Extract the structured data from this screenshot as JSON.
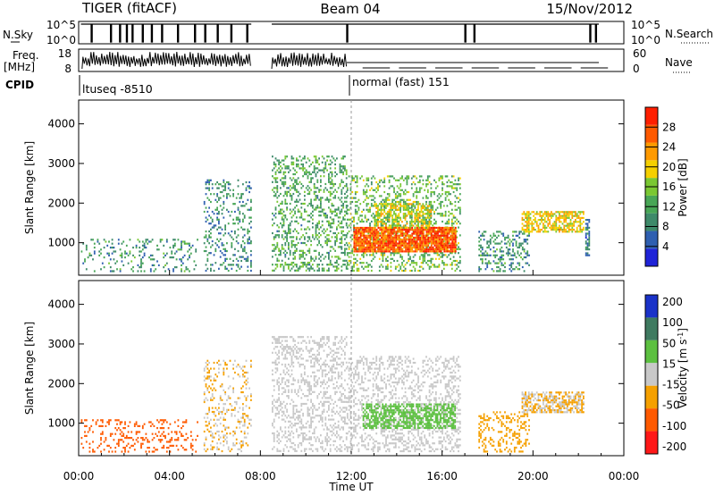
{
  "header": {
    "title": "TIGER (fitACF)",
    "beam": "Beam 04",
    "date": "15/Nov/2012"
  },
  "status_panels": {
    "nsky_label": "N.Sky",
    "nsky_ticks": [
      "10^5",
      "10^0"
    ],
    "nsearch_label": "N.Search",
    "nsearch_ticks": [
      "10^5",
      "10^0"
    ],
    "freq_label_1": "Freq.",
    "freq_label_2": "[MHz]",
    "freq_ticks": [
      "18",
      "8"
    ],
    "nave_label": "Nave",
    "nave_ticks": [
      "60",
      "0"
    ],
    "cpid_label": "CPID",
    "cpid_segments": [
      "ltuseq -8510",
      "normal (fast) 151"
    ]
  },
  "colors": {
    "power": [
      "#1f23d8",
      "#2f5fb0",
      "#3e8a6a",
      "#48a656",
      "#7ac832",
      "#f5d000",
      "#ff9a00",
      "#ff5a00",
      "#ff1f00"
    ],
    "velocity": [
      "#1a32c8",
      "#3f7a60",
      "#5cc040",
      "#c8c8c8",
      "#f5a000",
      "#ff5a00",
      "#ff1818"
    ]
  },
  "chart_data": [
    {
      "type": "heatmap",
      "title": "",
      "xlabel": "",
      "ylabel": "Slant Range [km]",
      "x_domain_hours": [
        0,
        24
      ],
      "x_ticks": [
        "00:00",
        "04:00",
        "08:00",
        "12:00",
        "16:00",
        "20:00",
        "00:00"
      ],
      "ylim": [
        180,
        4600
      ],
      "y_ticks": [
        1000,
        2000,
        3000,
        4000
      ],
      "colorbar": {
        "label": "Power [dB]",
        "ticks": [
          4,
          8,
          12,
          16,
          20,
          24,
          28
        ],
        "range": [
          0,
          32
        ]
      },
      "data_regions": [
        {
          "t": [
            0.1,
            5.2
          ],
          "r": [
            300,
            1100
          ],
          "value": 10,
          "density": 0.18
        },
        {
          "t": [
            5.5,
            7.6
          ],
          "r": [
            300,
            2600
          ],
          "value": 9,
          "density": 0.22
        },
        {
          "t": [
            8.5,
            11.8
          ],
          "r": [
            300,
            3200
          ],
          "value": 12,
          "density": 0.3
        },
        {
          "t": [
            11.8,
            16.8
          ],
          "r": [
            300,
            2700
          ],
          "value": 14,
          "density": 0.3
        },
        {
          "t": [
            12.1,
            16.6
          ],
          "r": [
            800,
            1400
          ],
          "value": 27,
          "density": 0.9
        },
        {
          "t": [
            13.0,
            15.5
          ],
          "r": [
            1400,
            2000
          ],
          "value": 18,
          "density": 0.55
        },
        {
          "t": [
            17.6,
            19.8
          ],
          "r": [
            300,
            1300
          ],
          "value": 10,
          "density": 0.3
        },
        {
          "t": [
            19.5,
            22.2
          ],
          "r": [
            1300,
            1800
          ],
          "value": 20,
          "density": 0.65
        },
        {
          "t": [
            22.3,
            22.5
          ],
          "r": [
            700,
            1600
          ],
          "value": 8,
          "density": 0.6
        }
      ]
    },
    {
      "type": "heatmap",
      "title": "",
      "xlabel": "Time UT",
      "ylabel": "Slant Range [km]",
      "x_domain_hours": [
        0,
        24
      ],
      "x_ticks": [
        "00:00",
        "04:00",
        "08:00",
        "12:00",
        "16:00",
        "20:00",
        "00:00"
      ],
      "ylim": [
        180,
        4600
      ],
      "y_ticks": [
        1000,
        2000,
        3000,
        4000
      ],
      "colorbar": {
        "label": "Velocity [m s^-1]",
        "ticks": [
          "200",
          "100",
          "50",
          "15",
          "-15",
          "-50",
          "-100",
          "-200"
        ]
      },
      "data_regions": [
        {
          "t": [
            0.1,
            5.2
          ],
          "r": [
            300,
            1100
          ],
          "value": -40,
          "density": 0.18
        },
        {
          "t": [
            5.5,
            7.6
          ],
          "r": [
            300,
            2600
          ],
          "value": 0,
          "density": 0.22
        },
        {
          "t": [
            8.5,
            11.8
          ],
          "r": [
            300,
            3200
          ],
          "value": 5,
          "density": 0.3
        },
        {
          "t": [
            11.8,
            16.8
          ],
          "r": [
            300,
            2700
          ],
          "value": 10,
          "density": 0.32
        },
        {
          "t": [
            12.5,
            16.6
          ],
          "r": [
            900,
            1500
          ],
          "value": 40,
          "density": 0.6
        },
        {
          "t": [
            17.6,
            19.8
          ],
          "r": [
            300,
            1300
          ],
          "value": -20,
          "density": 0.3
        },
        {
          "t": [
            19.5,
            22.2
          ],
          "r": [
            1300,
            1800
          ],
          "value": 0,
          "density": 0.65
        }
      ]
    }
  ]
}
